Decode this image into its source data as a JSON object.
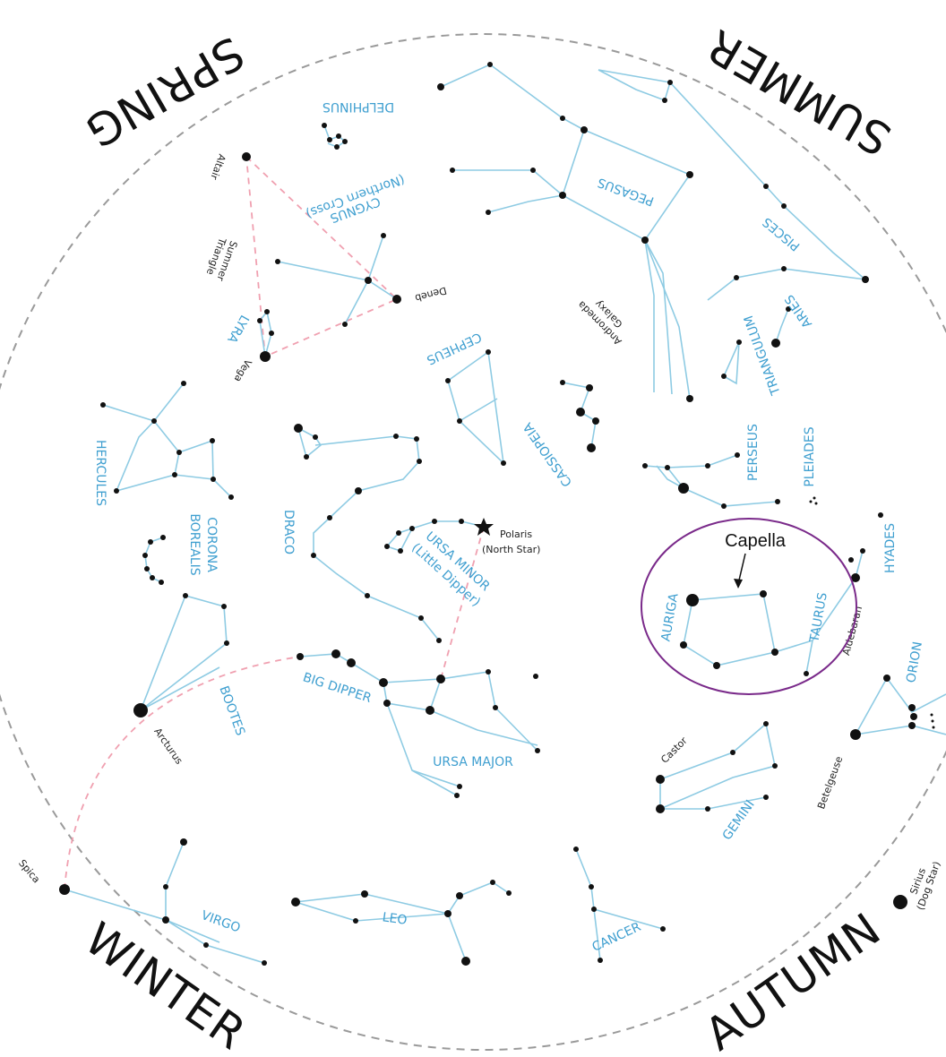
{
  "seasons": {
    "spring": "SPRING",
    "summer": "SUMMER",
    "winter": "WINTER",
    "autumn": "AUTUMN"
  },
  "constellations": {
    "delphinus": "DELPHINUS",
    "cygnus": "CYGNUS",
    "cygnus_sub": "(Northern Cross)",
    "pegasus": "PEGASUS",
    "pisces": "PISCES",
    "aries": "ARIES",
    "triangulum": "TRIANGULUM",
    "lyra": "LYRA",
    "cepheus": "CEPHEUS",
    "cassiopeia": "CASSIOPEIA",
    "perseus": "PERSEUS",
    "pleiades": "PLEIADES",
    "hercules": "HERCULES",
    "corona1": "CORONA",
    "corona2": "BOREALIS",
    "draco": "DRACO",
    "ursa_minor": "URSA MINOR",
    "ursa_minor_sub": "(Little Dipper)",
    "auriga": "AURIGA",
    "taurus": "TAURUS",
    "hyades": "HYADES",
    "orion": "ORION",
    "bootes": "BOOTES",
    "big_dipper": "BIG DIPPER",
    "ursa_major": "URSA MAJOR",
    "gemini": "GEMINI",
    "virgo": "VIRGO",
    "leo": "LEO",
    "cancer": "CANCER"
  },
  "stars": {
    "altair": "Altair",
    "summer1": "Summer",
    "summer2": "Triangle",
    "deneb": "Deneb",
    "vega": "Vega",
    "andromeda1": "Andromeda",
    "andromeda2": "Galaxy",
    "polaris": "Polaris",
    "polaris_sub": "(North Star)",
    "aldebaran": "Aldebaran",
    "arcturus": "Arcturus",
    "castor": "Castor",
    "betelgeuse": "Betelgeuse",
    "spica": "Spica",
    "sirius": "Sirius",
    "sirius_sub": "(Dog Star)"
  },
  "annotation": {
    "label": "Capella",
    "circle_color": "#7a2a8a"
  },
  "colors": {
    "lines": "#8ecbe3",
    "labels": "#3f9fd0",
    "triangle": "#f0a0b0",
    "border": "#9a9a9a"
  }
}
